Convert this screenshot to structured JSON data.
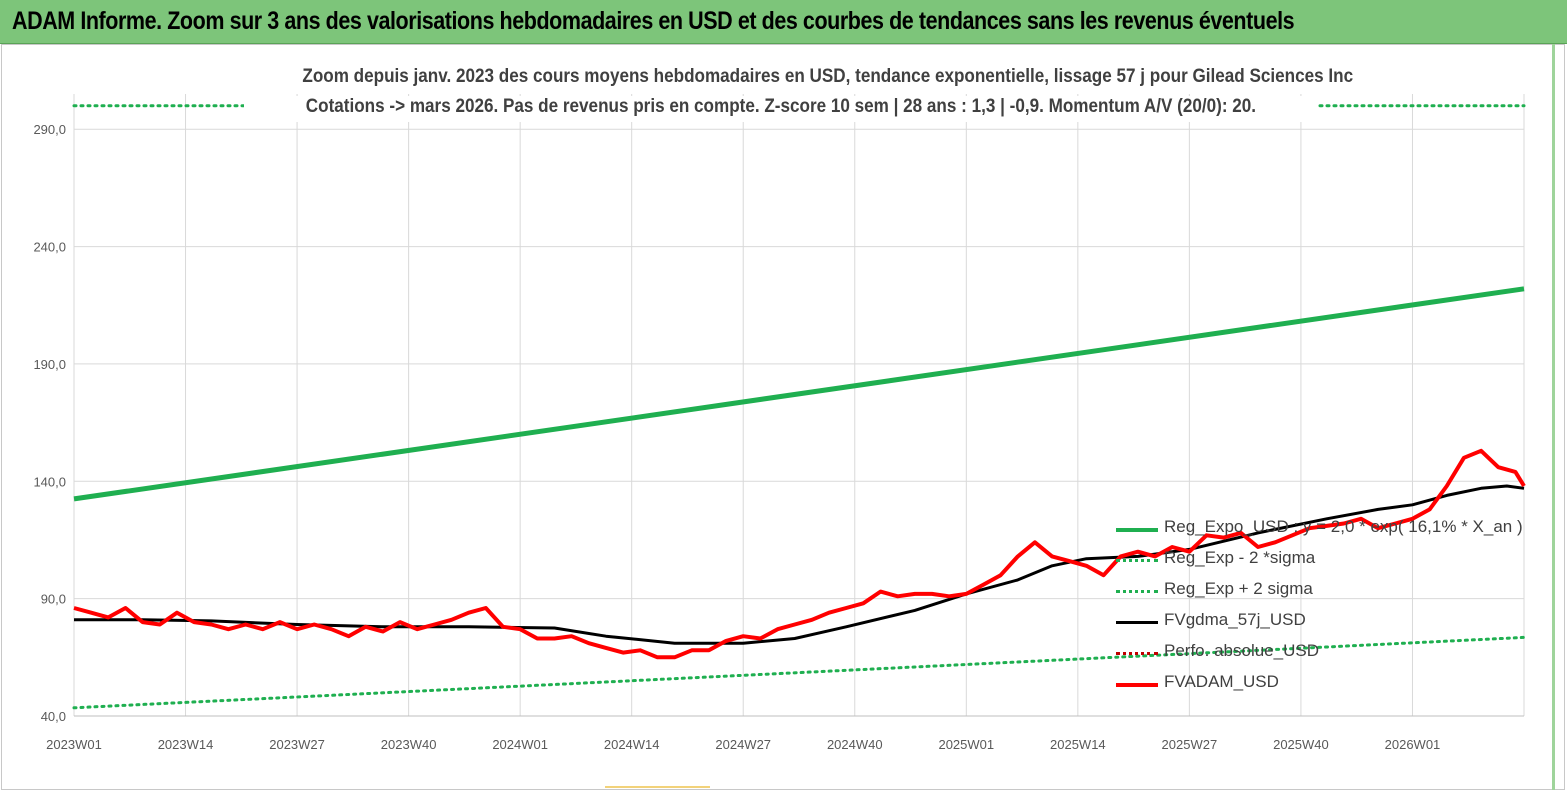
{
  "header": {
    "title": "ADAM Informe. Zoom sur 3 ans des valorisations hebdomadaires en USD et des courbes de tendances sans les revenus éventuels"
  },
  "chart_data": {
    "type": "line",
    "title": "Zoom depuis janv. 2023 des cours moyens hebdomadaires en USD, tendance exponentielle, lissage 57 j pour Gilead Sciences Inc",
    "subtitle": "Cotations -> mars 2026. Pas de revenus pris en compte. Z-score 10 sem | 28 ans : 1,3 | -0,9. Momentum A/V (20/0): 20.",
    "xlabel": "",
    "ylabel": "",
    "ylim": [
      40,
      305
    ],
    "yticks": [
      "40,0",
      "90,0",
      "140,0",
      "190,0",
      "240,0",
      "290,0"
    ],
    "ytick_values": [
      40,
      90,
      140,
      190,
      240,
      290
    ],
    "xticks": [
      "2023W01",
      "2023W14",
      "2023W27",
      "2023W40",
      "2024W01",
      "2024W14",
      "2024W27",
      "2024W40",
      "2025W01",
      "2025W14",
      "2025W27",
      "2025W40",
      "2026W01"
    ],
    "xtick_weeks": [
      0,
      13,
      26,
      39,
      52,
      65,
      78,
      91,
      104,
      117,
      130,
      143,
      156
    ],
    "x_last_week": 169,
    "grid": true,
    "legend_position": "right",
    "series": [
      {
        "name": "Reg_Expo_USD : y = 2,0 * exp( 16,1% * X_an )",
        "color": "#1faf50",
        "style": "solid",
        "x": [
          0,
          169
        ],
        "values": [
          132.5,
          222
        ]
      },
      {
        "name": "Reg_Exp - 2 *sigma",
        "color": "#1faf50",
        "style": "dotted",
        "x": [
          0,
          169
        ],
        "values": [
          43.5,
          73.5
        ]
      },
      {
        "name": "Reg_Exp + 2 sigma",
        "color": "#1faf50",
        "style": "dotted",
        "x": [
          0,
          169
        ],
        "values": [
          300,
          300
        ]
      },
      {
        "name": "FVgdma_57j_USD",
        "color": "#000000",
        "style": "solid",
        "x": [
          0,
          8,
          16,
          26,
          36,
          46,
          56,
          62,
          70,
          78,
          84,
          90,
          98,
          104,
          110,
          114,
          118,
          124,
          130,
          138,
          146,
          152,
          156,
          160,
          164,
          167,
          169
        ],
        "values": [
          81,
          81,
          80.5,
          79,
          78,
          78,
          77.5,
          74,
          71,
          71,
          73,
          78,
          85,
          92,
          98,
          104,
          107,
          108,
          111,
          118,
          124,
          128,
          130,
          134,
          137,
          138,
          137
        ]
      },
      {
        "name": "Perfo. absolue_USD",
        "color": "#c00000",
        "style": "dotted",
        "x": [],
        "values": []
      },
      {
        "name": "FVADAM_USD",
        "color": "#ff0000",
        "style": "solid",
        "x": [
          0,
          2,
          4,
          6,
          8,
          10,
          12,
          14,
          16,
          18,
          20,
          22,
          24,
          26,
          28,
          30,
          32,
          34,
          36,
          38,
          40,
          42,
          44,
          46,
          48,
          50,
          52,
          54,
          56,
          58,
          60,
          62,
          64,
          66,
          68,
          70,
          72,
          74,
          76,
          78,
          80,
          82,
          84,
          86,
          88,
          90,
          92,
          94,
          96,
          98,
          100,
          102,
          104,
          106,
          108,
          110,
          112,
          114,
          116,
          118,
          120,
          122,
          124,
          126,
          128,
          130,
          132,
          134,
          136,
          138,
          140,
          142,
          144,
          146,
          148,
          150,
          152,
          154,
          156,
          158,
          160,
          162,
          164,
          166,
          168,
          169
        ],
        "values": [
          86,
          84,
          82,
          86,
          80,
          79,
          84,
          80,
          79,
          77,
          79,
          77,
          80,
          77,
          79,
          77,
          74,
          78,
          76,
          80,
          77,
          79,
          81,
          84,
          86,
          78,
          77,
          73,
          73,
          74,
          71,
          69,
          67,
          68,
          65,
          65,
          68,
          68,
          72,
          74,
          73,
          77,
          79,
          81,
          84,
          86,
          88,
          93,
          91,
          92,
          92,
          91,
          92,
          96,
          100,
          108,
          114,
          108,
          106,
          104,
          100,
          108,
          110,
          108,
          112,
          110,
          117,
          116,
          118,
          112,
          114,
          117,
          120,
          121,
          122,
          124,
          120,
          122,
          124,
          128,
          138,
          150,
          153,
          146,
          144,
          138
        ]
      }
    ]
  }
}
